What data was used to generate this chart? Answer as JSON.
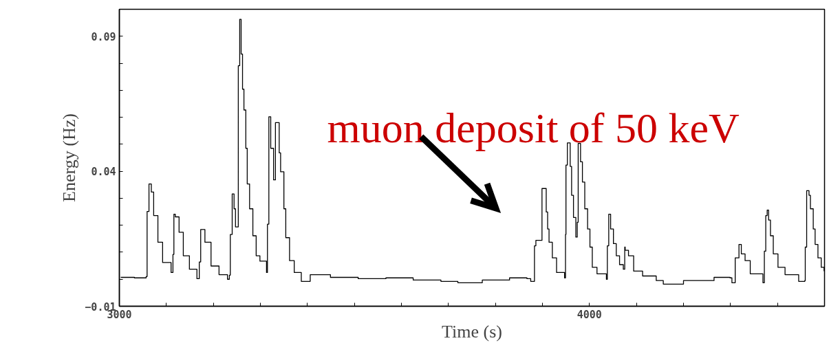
{
  "chart_data": {
    "type": "step",
    "xlabel": "Time (s)",
    "ylabel": "Energy (Hz)",
    "xlim": [
      3000,
      4500
    ],
    "ylim": [
      -0.01,
      0.1
    ],
    "xticks": [
      3000,
      {
        "value": 3100,
        "label": null
      },
      {
        "value": 3200,
        "label": null
      },
      {
        "value": 3300,
        "label": null
      },
      {
        "value": 3400,
        "label": null
      },
      {
        "value": 3500,
        "label": null
      },
      {
        "value": 3600,
        "label": null
      },
      {
        "value": 3700,
        "label": null
      },
      {
        "value": 3800,
        "label": null
      },
      {
        "value": 3900,
        "label": null
      },
      4000,
      {
        "value": 4100,
        "label": null
      },
      {
        "value": 4200,
        "label": null
      },
      {
        "value": 4300,
        "label": null
      },
      {
        "value": 4400,
        "label": null
      }
    ],
    "yticks": [
      -0.01,
      {
        "value": 0.0,
        "label": null
      },
      {
        "value": 0.01,
        "label": null
      },
      {
        "value": 0.02,
        "label": null
      },
      {
        "value": 0.03,
        "label": null
      },
      0.04,
      {
        "value": 0.05,
        "label": null
      },
      {
        "value": 0.06,
        "label": null
      },
      {
        "value": 0.07,
        "label": null
      },
      {
        "value": 0.08,
        "label": null
      },
      0.09
    ],
    "grid": false,
    "x": [
      3003,
      3032,
      3057,
      3059,
      3063,
      3068,
      3073,
      3082,
      3092,
      3110,
      3114,
      3116,
      3119,
      3127,
      3136,
      3149,
      3165,
      3170,
      3173,
      3182,
      3195,
      3212,
      3230,
      3234,
      3236,
      3240,
      3244,
      3247,
      3253,
      3256,
      3259,
      3262,
      3265,
      3269,
      3272,
      3277,
      3284,
      3291,
      3299,
      3313,
      3315,
      3318,
      3322,
      3328,
      3332,
      3340,
      3343,
      3350,
      3354,
      3362,
      3372,
      3387,
      3406,
      3449,
      3508,
      3567,
      3625,
      3684,
      3720,
      3772,
      3830,
      3867,
      3875,
      3883,
      3886,
      3899,
      3908,
      3911,
      3914,
      3921,
      3930,
      3947,
      3949,
      3950,
      3953,
      3959,
      3962,
      3966,
      3971,
      3974,
      3976,
      3981,
      3985,
      3990,
      3996,
      4001,
      4006,
      4016,
      4036,
      4038,
      4041,
      4045,
      4051,
      4057,
      4064,
      4072,
      4075,
      4076,
      4083,
      4094,
      4113,
      4142,
      4157,
      4200,
      4240,
      4265,
      4299,
      4303,
      4310,
      4318,
      4323,
      4331,
      4342,
      4369,
      4372,
      4375,
      4378,
      4381,
      4385,
      4391,
      4401,
      4416,
      4445,
      4458,
      4459,
      4462,
      4467,
      4470,
      4476,
      4480,
      4486,
      4493,
      4499
    ],
    "series": [
      {
        "color": "#000000",
        "values": [
          0.0007,
          0.0005,
          0.001,
          0.0251,
          0.0353,
          0.0323,
          0.0236,
          0.0137,
          0.0062,
          0.0025,
          0.0092,
          0.0241,
          0.0231,
          0.0174,
          0.0087,
          0.0037,
          0.0002,
          0.0064,
          0.0184,
          0.0137,
          0.0049,
          0.0017,
          0.0,
          0.0015,
          0.0166,
          0.0316,
          0.0261,
          0.0194,
          0.0791,
          0.0963,
          0.0834,
          0.0704,
          0.0627,
          0.0485,
          0.0353,
          0.0261,
          0.0161,
          0.0087,
          0.0067,
          0.0025,
          0.0204,
          0.0602,
          0.0485,
          0.0368,
          0.058,
          0.0468,
          0.0398,
          0.0261,
          0.0154,
          0.0069,
          0.0025,
          -0.0008,
          0.0017,
          0.0007,
          0.0002,
          0.0005,
          -0.0003,
          -0.0008,
          -0.0013,
          -0.0003,
          0.0005,
          0.0002,
          -0.0008,
          0.0124,
          0.0144,
          0.0336,
          0.0249,
          0.0186,
          0.0137,
          0.0079,
          0.0025,
          0.0005,
          0.0166,
          0.0423,
          0.0505,
          0.0418,
          0.0311,
          0.0229,
          0.0156,
          0.0211,
          0.0503,
          0.0435,
          0.036,
          0.0261,
          0.0186,
          0.0119,
          0.0044,
          0.002,
          0.0,
          0.0124,
          0.0241,
          0.0186,
          0.0132,
          0.0087,
          0.0054,
          0.0037,
          0.0119,
          0.0107,
          0.0087,
          0.003,
          0.0012,
          -0.0005,
          -0.0018,
          -0.0005,
          -0.0005,
          0.0007,
          0.0005,
          -0.0013,
          0.0079,
          0.0129,
          0.0094,
          0.0069,
          0.002,
          -0.0013,
          0.0104,
          0.0236,
          0.0256,
          0.0219,
          0.0161,
          0.0094,
          0.0044,
          0.0017,
          -0.0008,
          -0.0005,
          0.0119,
          0.0328,
          0.0311,
          0.0261,
          0.0186,
          0.0129,
          0.0079,
          0.0044,
          0.003
        ]
      }
    ],
    "annotations": [
      "muon deposit of 50 keV"
    ]
  }
}
